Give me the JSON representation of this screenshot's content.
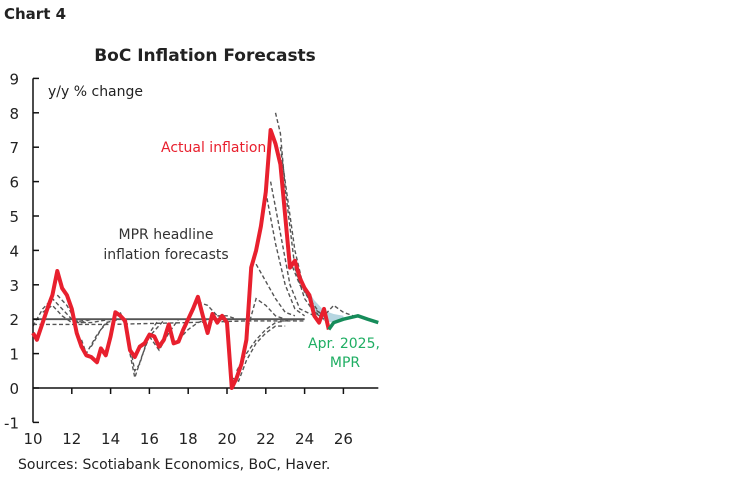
{
  "chart_label": "Chart 4",
  "source": "Sources: Scotiabank Economics, BoC, Haver.",
  "chart_data": {
    "type": "line",
    "title": "BoC Inflation Forecasts",
    "ylabel": "y/y % change",
    "xlim": [
      10,
      27.8
    ],
    "ylim": [
      -1,
      9
    ],
    "x_ticks": [
      "10",
      "12",
      "14",
      "16",
      "18",
      "20",
      "22",
      "24",
      "26"
    ],
    "y_ticks": [
      "-1",
      "0",
      "1",
      "2",
      "3",
      "4",
      "5",
      "6",
      "7",
      "8",
      "9"
    ],
    "grid": false,
    "annotations": {
      "actual": "Actual inflation",
      "forecasts_line1": "MPR headline",
      "forecasts_line2": "inflation forecasts",
      "latest_line1": "Apr. 2025,",
      "latest_line2": "MPR"
    },
    "colors": {
      "actual": "#e8202e",
      "latest_forecast": "#168c5a",
      "past_forecasts": "#555555",
      "band": "#a9cfdc",
      "target": "#555555"
    },
    "target": 2,
    "actual": [
      [
        10,
        1.6
      ],
      [
        10.2,
        1.4
      ],
      [
        10.5,
        1.9
      ],
      [
        10.8,
        2.4
      ],
      [
        11,
        2.7
      ],
      [
        11.25,
        3.4
      ],
      [
        11.5,
        2.9
      ],
      [
        11.75,
        2.7
      ],
      [
        12,
        2.3
      ],
      [
        12.25,
        1.6
      ],
      [
        12.5,
        1.2
      ],
      [
        12.75,
        0.95
      ],
      [
        13,
        0.9
      ],
      [
        13.3,
        0.75
      ],
      [
        13.5,
        1.15
      ],
      [
        13.75,
        0.95
      ],
      [
        14,
        1.5
      ],
      [
        14.25,
        2.2
      ],
      [
        14.5,
        2.1
      ],
      [
        14.75,
        1.95
      ],
      [
        15,
        1.1
      ],
      [
        15.25,
        0.9
      ],
      [
        15.5,
        1.2
      ],
      [
        15.75,
        1.3
      ],
      [
        16,
        1.55
      ],
      [
        16.25,
        1.5
      ],
      [
        16.5,
        1.2
      ],
      [
        16.75,
        1.4
      ],
      [
        17,
        1.85
      ],
      [
        17.25,
        1.3
      ],
      [
        17.5,
        1.35
      ],
      [
        17.75,
        1.7
      ],
      [
        18,
        2.0
      ],
      [
        18.25,
        2.3
      ],
      [
        18.5,
        2.65
      ],
      [
        18.75,
        2.1
      ],
      [
        19,
        1.6
      ],
      [
        19.25,
        2.15
      ],
      [
        19.5,
        1.9
      ],
      [
        19.75,
        2.1
      ],
      [
        20,
        1.9
      ],
      [
        20.25,
        0.0
      ],
      [
        20.5,
        0.3
      ],
      [
        20.75,
        0.7
      ],
      [
        21,
        1.4
      ],
      [
        21.25,
        3.5
      ],
      [
        21.5,
        4.0
      ],
      [
        21.75,
        4.7
      ],
      [
        22,
        5.7
      ],
      [
        22.25,
        7.5
      ],
      [
        22.5,
        7.1
      ],
      [
        22.75,
        6.5
      ],
      [
        23,
        5.0
      ],
      [
        23.25,
        3.5
      ],
      [
        23.5,
        3.7
      ],
      [
        23.75,
        3.2
      ],
      [
        24,
        2.9
      ],
      [
        24.25,
        2.7
      ],
      [
        24.5,
        2.1
      ],
      [
        24.75,
        1.9
      ],
      [
        25,
        2.3
      ],
      [
        25.25,
        1.7
      ]
    ],
    "latest_forecast": [
      [
        25.25,
        1.7
      ],
      [
        25.5,
        1.9
      ],
      [
        26,
        2.0
      ],
      [
        26.75,
        2.1
      ],
      [
        27.25,
        2.0
      ],
      [
        27.8,
        1.9
      ]
    ],
    "band": {
      "upper": [
        [
          23.5,
          3.6
        ],
        [
          24,
          3.0
        ],
        [
          24.5,
          2.55
        ],
        [
          25,
          2.25
        ],
        [
          25.5,
          2.15
        ],
        [
          26,
          2.1
        ]
      ],
      "lower": [
        [
          23.5,
          3.4
        ],
        [
          24,
          2.8
        ],
        [
          24.5,
          2.2
        ],
        [
          25,
          1.95
        ],
        [
          25.5,
          1.9
        ],
        [
          26,
          2.0
        ]
      ]
    },
    "past_forecasts": [
      [
        [
          10,
          1.85
        ],
        [
          14,
          1.85
        ],
        [
          18,
          1.9
        ],
        [
          21,
          1.95
        ],
        [
          24,
          1.95
        ]
      ],
      [
        [
          10,
          1.8
        ],
        [
          10.5,
          2.3
        ],
        [
          11,
          2.6
        ],
        [
          11.5,
          2.3
        ],
        [
          12,
          2.0
        ],
        [
          12.5,
          1.9
        ],
        [
          13,
          2.0
        ]
      ],
      [
        [
          10.5,
          2.2
        ],
        [
          11,
          2.4
        ],
        [
          11.5,
          2.1
        ],
        [
          12,
          1.9
        ],
        [
          13,
          2.0
        ]
      ],
      [
        [
          11.25,
          2.7
        ],
        [
          11.75,
          2.4
        ],
        [
          12.25,
          1.9
        ],
        [
          13,
          1.9
        ],
        [
          14,
          2.0
        ]
      ],
      [
        [
          12.5,
          1.4
        ],
        [
          12.75,
          1.0
        ],
        [
          13.25,
          1.5
        ],
        [
          13.75,
          1.9
        ],
        [
          14.5,
          2.0
        ]
      ],
      [
        [
          13,
          1.2
        ],
        [
          13.5,
          1.7
        ],
        [
          14,
          2.0
        ],
        [
          14.5,
          2.0
        ]
      ],
      [
        [
          14.5,
          2.2
        ],
        [
          14.75,
          1.8
        ],
        [
          15,
          1.2
        ],
        [
          15.25,
          0.5
        ],
        [
          15.5,
          0.7
        ],
        [
          16,
          1.6
        ],
        [
          16.5,
          2.0
        ]
      ],
      [
        [
          15,
          1.0
        ],
        [
          15.25,
          0.3
        ],
        [
          15.6,
          0.9
        ],
        [
          16,
          1.5
        ],
        [
          16.8,
          2.0
        ]
      ],
      [
        [
          16,
          1.5
        ],
        [
          16.5,
          1.1
        ],
        [
          17,
          1.6
        ],
        [
          17.5,
          2.0
        ],
        [
          18,
          2.0
        ]
      ],
      [
        [
          17.5,
          1.4
        ],
        [
          18,
          1.7
        ],
        [
          18.5,
          1.9
        ],
        [
          19,
          2.0
        ]
      ],
      [
        [
          18.5,
          2.5
        ],
        [
          19,
          2.4
        ],
        [
          19.5,
          2.1
        ],
        [
          20,
          2.0
        ]
      ],
      [
        [
          19.5,
          2.1
        ],
        [
          20,
          2.1
        ],
        [
          20.5,
          2.0
        ],
        [
          21,
          2.0
        ]
      ],
      [
        [
          20.25,
          0.3
        ],
        [
          20.6,
          0.2
        ],
        [
          21,
          0.8
        ],
        [
          21.5,
          1.3
        ],
        [
          22,
          1.6
        ],
        [
          22.5,
          1.8
        ],
        [
          23,
          1.8
        ]
      ],
      [
        [
          20.5,
          0.5
        ],
        [
          21,
          1.0
        ],
        [
          21.5,
          1.4
        ],
        [
          22,
          1.7
        ],
        [
          22.5,
          1.9
        ],
        [
          23.5,
          2.0
        ]
      ],
      [
        [
          21,
          1.6
        ],
        [
          21.5,
          2.6
        ],
        [
          22,
          2.4
        ],
        [
          22.5,
          2.1
        ],
        [
          23,
          2.0
        ]
      ],
      [
        [
          21.5,
          3.6
        ],
        [
          22,
          3.1
        ],
        [
          22.5,
          2.6
        ],
        [
          23,
          2.2
        ],
        [
          23.5,
          2.1
        ]
      ],
      [
        [
          22,
          5.7
        ],
        [
          22.5,
          4.2
        ],
        [
          23,
          3.0
        ],
        [
          23.5,
          2.3
        ],
        [
          24,
          2.1
        ]
      ],
      [
        [
          22.25,
          6.0
        ],
        [
          22.75,
          4.5
        ],
        [
          23.25,
          3.0
        ],
        [
          23.75,
          2.3
        ],
        [
          24.5,
          2.1
        ]
      ],
      [
        [
          22.5,
          8.0
        ],
        [
          22.75,
          7.4
        ],
        [
          23,
          5.8
        ],
        [
          23.5,
          3.5
        ],
        [
          24,
          2.6
        ],
        [
          24.5,
          2.2
        ],
        [
          25,
          2.0
        ]
      ],
      [
        [
          22.75,
          7.0
        ],
        [
          23,
          6.0
        ],
        [
          23.5,
          4.0
        ],
        [
          24,
          2.8
        ],
        [
          24.5,
          2.3
        ],
        [
          25,
          2.1
        ]
      ],
      [
        [
          23.25,
          3.7
        ],
        [
          23.75,
          3.0
        ],
        [
          24.25,
          2.6
        ],
        [
          24.75,
          2.2
        ],
        [
          25.25,
          2.0
        ]
      ],
      [
        [
          24.5,
          2.2
        ],
        [
          25,
          2.1
        ],
        [
          25.5,
          2.4
        ],
        [
          26,
          2.2
        ],
        [
          26.5,
          2.1
        ]
      ]
    ]
  }
}
